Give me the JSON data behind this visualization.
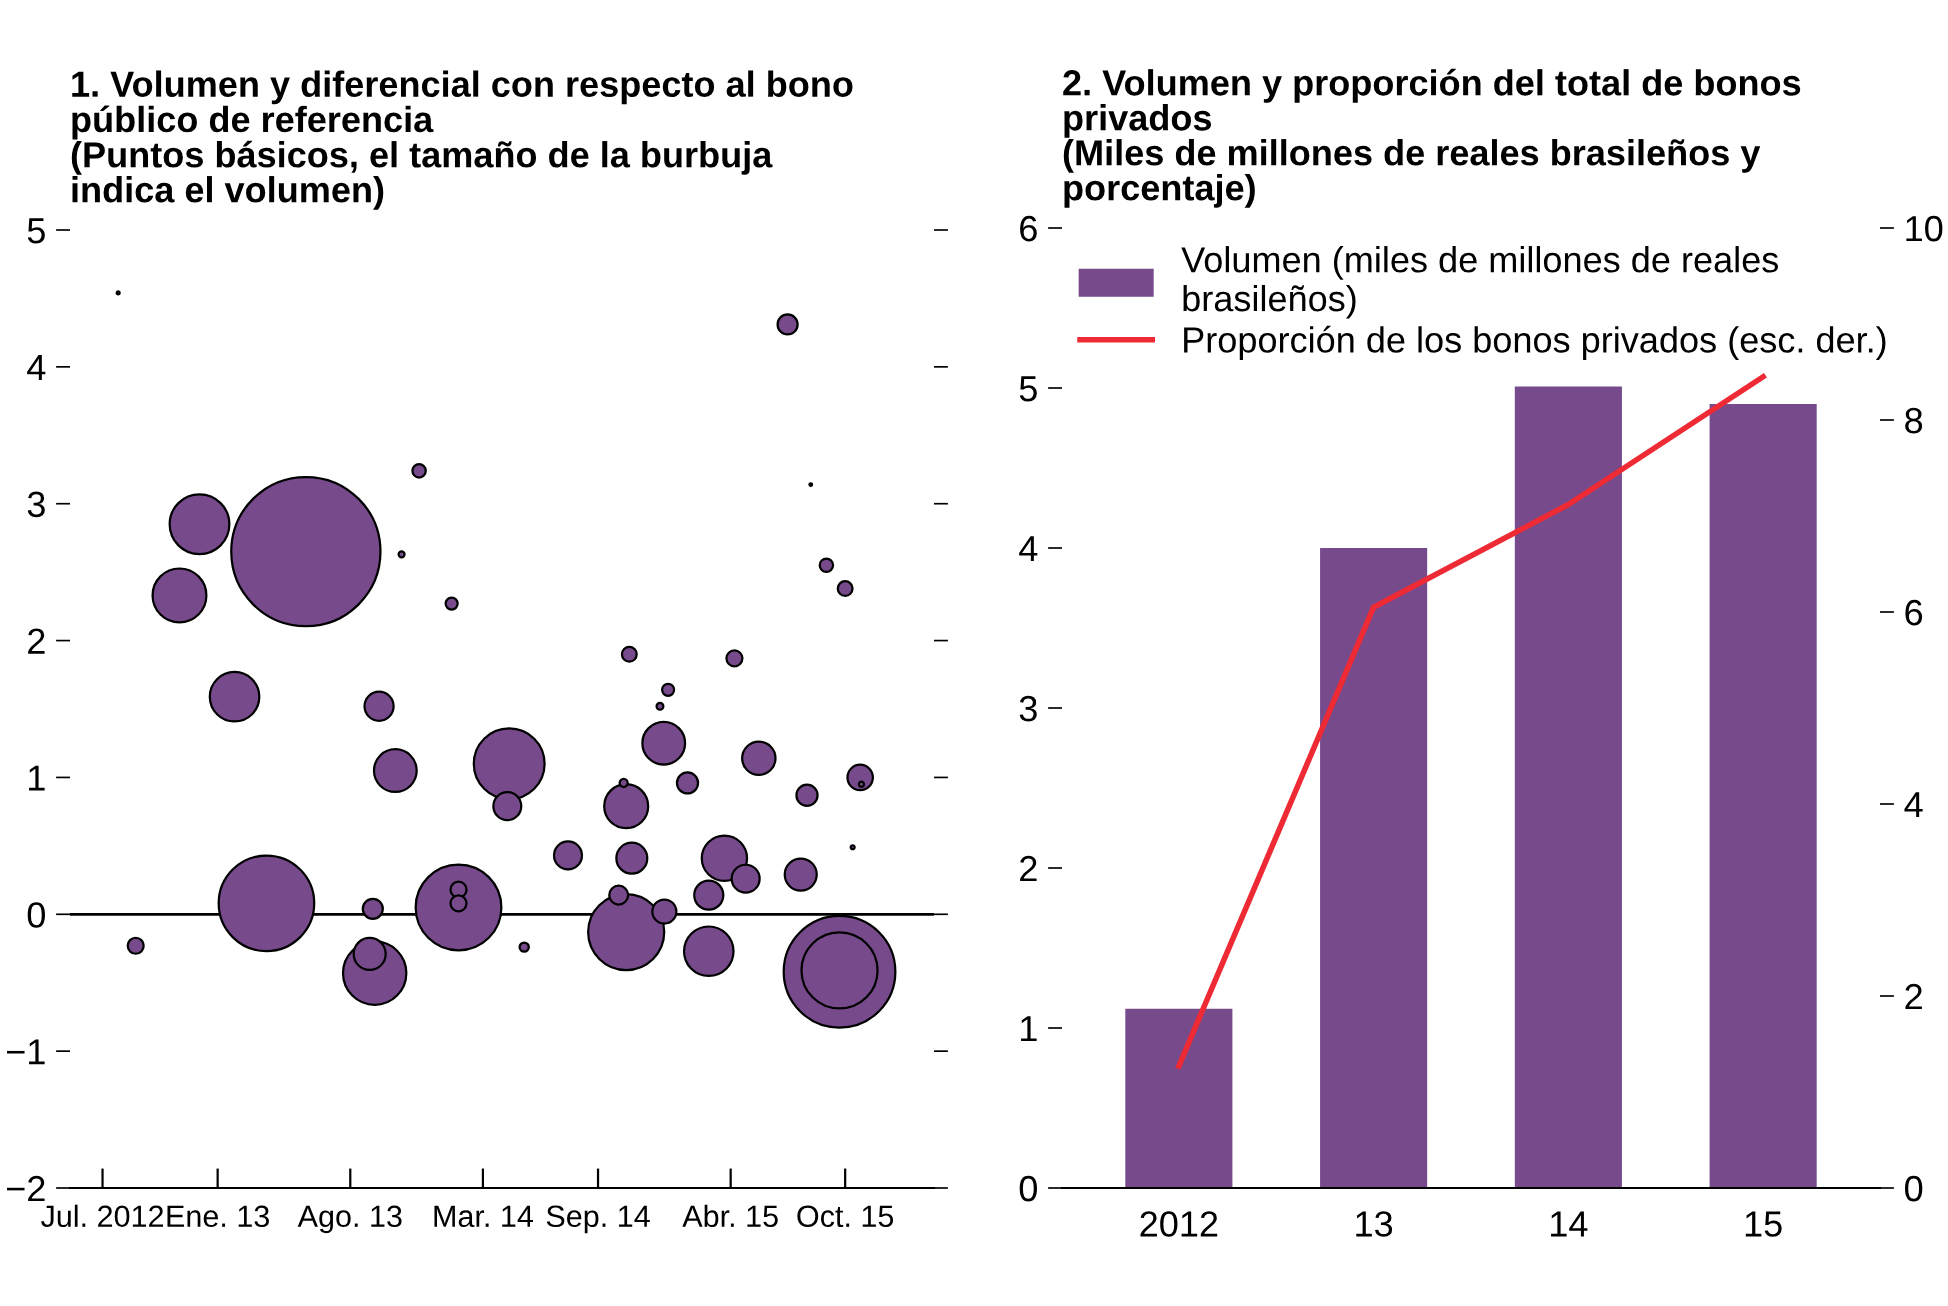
{
  "chart_data": [
    {
      "type": "bubble",
      "title": "1. Volumen y diferencial con respecto al bono\npúblico de referencia\n(Puntos básicos, el tamaño de la burbuja\nindica el volumen)",
      "x": [
        "2012-07-26",
        "2012-12-03",
        "2012-11-01",
        "2013-05-22",
        "2013-11-19",
        "2013-10-22",
        "2014-01-10",
        "2013-01-28",
        "2013-09-16",
        "2015-07-01",
        "2015-08-07",
        "2015-09-01",
        "2015-10-01",
        "2014-10-21",
        "2015-04-07",
        "2014-12-22",
        "2014-12-09",
        "2013-10-12",
        "2014-04-12",
        "2014-04-09",
        "2012-08-23",
        "2013-03-20",
        "2013-09-06",
        "2013-09-01",
        "2013-09-09",
        "2014-01-21",
        "2014-01-21",
        "2014-01-21",
        "2014-05-06",
        "2014-07-15",
        "2014-10-25",
        "2014-10-16",
        "2014-10-12",
        "2014-12-15",
        "2015-01-22",
        "2015-05-16",
        "2015-08-01",
        "2015-10-25",
        "2015-10-27",
        "2015-10-13",
        "2015-03-22",
        "2015-04-25",
        "2015-02-25",
        "2015-07-22",
        "2014-10-04",
        "2014-10-16",
        "2014-12-16",
        "2015-02-25",
        "2015-09-22",
        "2015-09-22"
      ],
      "values": [
        4.54,
        2.85,
        2.33,
        2.65,
        3.24,
        2.63,
        2.27,
        1.59,
        1.52,
        4.31,
        3.14,
        2.55,
        2.38,
        1.9,
        1.87,
        1.64,
        1.52,
        1.05,
        1.1,
        0.79,
        -0.23,
        0.08,
        0.04,
        -0.29,
        -0.43,
        0.05,
        0.18,
        0.08,
        -0.24,
        0.43,
        0.41,
        0.79,
        0.96,
        1.25,
        0.96,
        1.14,
        0.87,
        1.0,
        0.95,
        0.49,
        0.41,
        0.26,
        0.14,
        0.29,
        0.14,
        -0.13,
        0.02,
        -0.27,
        -0.42,
        -0.41
      ],
      "sizes": [
        0.0004,
        0.16,
        0.13,
        1,
        0.008,
        0.0016,
        0.0065,
        0.11,
        0.038,
        0.018,
        0.0003,
        0.008,
        0.0098,
        0.0098,
        0.0115,
        0.0065,
        0.0021,
        0.082,
        0.225,
        0.035,
        0.0115,
        0.41,
        0.018,
        0.046,
        0.18,
        0.33,
        0.0115,
        0.0115,
        0.0038,
        0.035,
        0.043,
        0.087,
        0.0029,
        0.082,
        0.02,
        0.05,
        0.02,
        0.029,
        0.0012,
        0.0007,
        0.092,
        0.035,
        0.038,
        0.046,
        0.016,
        0.26,
        0.026,
        0.11,
        0.56,
        0.26
      ],
      "color": "#774a8c",
      "xlim": [
        "2012-05-10",
        "2016-02-20"
      ],
      "xticks": [
        {
          "value": "2012-07-01",
          "label": "Jul. 2012"
        },
        {
          "value": "2013-01-01",
          "label": "Ene. 13"
        },
        {
          "value": "2013-08-01",
          "label": "Ago. 13"
        },
        {
          "value": "2014-03-01",
          "label": "Mar. 14"
        },
        {
          "value": "2014-09-01",
          "label": "Sep. 14"
        },
        {
          "value": "2015-04-01",
          "label": "Abr. 15"
        },
        {
          "value": "2015-10-01",
          "label": "Oct. 15"
        }
      ],
      "ylim": [
        -2,
        5
      ],
      "yticks": [
        {
          "value": -2,
          "label": "−2"
        },
        {
          "value": -1,
          "label": "−1"
        },
        0,
        1,
        2,
        3,
        4,
        5
      ],
      "ref_lines": [
        {
          "axis": "y",
          "value": 0,
          "color": "#000000"
        }
      ],
      "grid": false
    },
    {
      "type": "bar",
      "title": "2. Volumen y proporción del total de bonos\nprivados\n(Miles de millones de reales brasileños y\nporcentaje)",
      "categories": [
        "2012",
        "13",
        "14",
        "15"
      ],
      "series": [
        {
          "name": "Volumen (miles de millones de reales\nbrasileños)",
          "type": "bar",
          "color": "#774a8c",
          "values": [
            1.12,
            4.0,
            5.01,
            4.9
          ]
        },
        {
          "name": "Proporción de los bonos privados (esc. der.)",
          "type": "line",
          "axis": "y2",
          "color": "#ee2a35",
          "values": [
            1.27,
            6.05,
            7.12,
            8.45
          ]
        }
      ],
      "ylim": [
        0,
        6
      ],
      "yticks": [
        0,
        1,
        2,
        3,
        4,
        5,
        6
      ],
      "y2lim": [
        0,
        10
      ],
      "y2ticks": [
        0,
        2,
        4,
        6,
        8,
        10
      ],
      "grid": false,
      "legend": "top left"
    }
  ]
}
